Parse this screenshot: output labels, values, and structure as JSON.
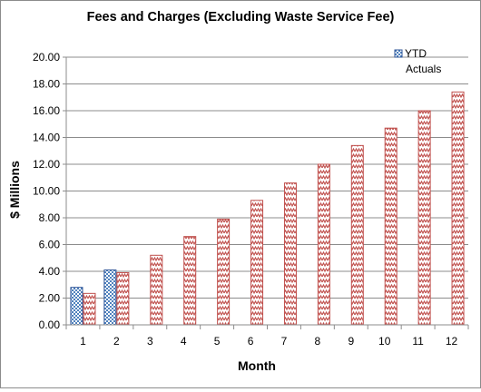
{
  "chart_data": {
    "type": "bar",
    "title": "Fees and Charges (Excluding  Waste Service Fee)",
    "xlabel": "Month",
    "ylabel": "$ Millions",
    "categories": [
      "1",
      "2",
      "3",
      "4",
      "5",
      "6",
      "7",
      "8",
      "9",
      "10",
      "11",
      "12"
    ],
    "series": [
      {
        "name": "YTD",
        "color": "#4f81bd",
        "pattern": "checker",
        "values": [
          2.8,
          4.1,
          null,
          null,
          null,
          null,
          null,
          null,
          null,
          null,
          null,
          null
        ]
      },
      {
        "name": "Actuals",
        "color": "#c0504d",
        "pattern": "zigzag",
        "values": [
          2.35,
          3.9,
          5.2,
          6.6,
          7.9,
          9.3,
          10.6,
          12.0,
          13.4,
          14.7,
          16.0,
          17.4
        ]
      }
    ],
    "ylim": [
      0,
      20
    ],
    "yticks": [
      "0.00",
      "2.00",
      "4.00",
      "6.00",
      "8.00",
      "10.00",
      "12.00",
      "14.00",
      "16.00",
      "18.00",
      "20.00"
    ],
    "grid": true,
    "legend": "top-right"
  }
}
